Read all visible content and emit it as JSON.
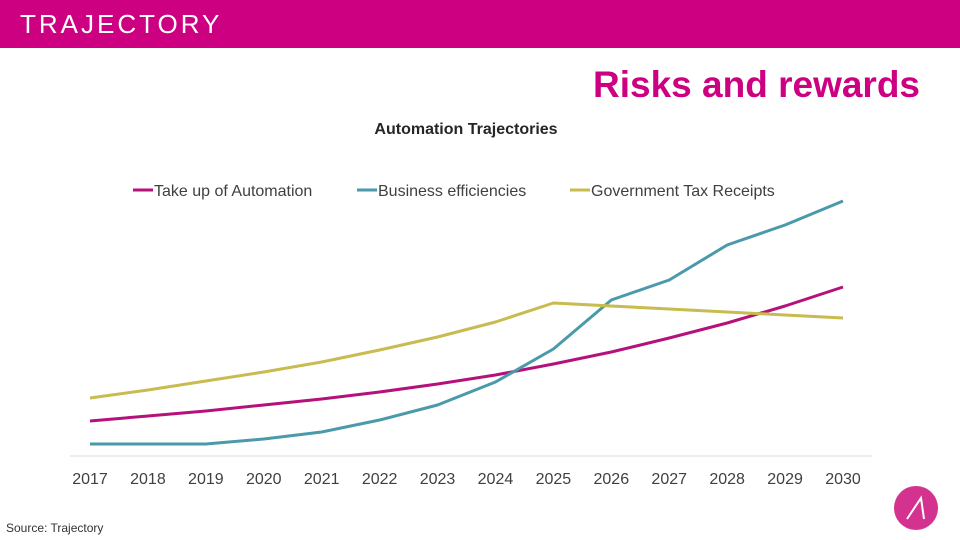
{
  "header": {
    "logo": "TRAJECTORY",
    "brand_color": "#cc0080"
  },
  "slide": {
    "title": "Risks and rewards",
    "source": "Source: Trajectory"
  },
  "chart_data": {
    "type": "line",
    "title": "Automation Trajectories",
    "xlabel": "",
    "ylabel": "",
    "x": [
      2017,
      2018,
      2019,
      2020,
      2021,
      2022,
      2023,
      2024,
      2025,
      2026,
      2027,
      2028,
      2029,
      2030
    ],
    "ylim": [
      0,
      260
    ],
    "grid": false,
    "y_axis_labels_shown": false,
    "legend_position": "top",
    "series": [
      {
        "name": "Take up of Automation",
        "color": "#b5117b",
        "values": [
          34,
          39,
          44,
          50,
          56,
          63,
          71,
          80,
          91,
          103,
          117,
          132,
          149,
          168
        ]
      },
      {
        "name": "Business efficiencies",
        "color": "#4a9aab",
        "values": [
          11,
          11,
          11,
          16,
          23,
          35,
          50,
          73,
          106,
          155,
          175,
          210,
          230,
          254
        ]
      },
      {
        "name": "Government Tax Receipts",
        "color": "#c8bb4f",
        "values": [
          57,
          65,
          74,
          83,
          93,
          105,
          118,
          133,
          152,
          149,
          146,
          143,
          140,
          137
        ]
      }
    ]
  },
  "icons": {
    "badge": "trajectory-mark-icon"
  }
}
